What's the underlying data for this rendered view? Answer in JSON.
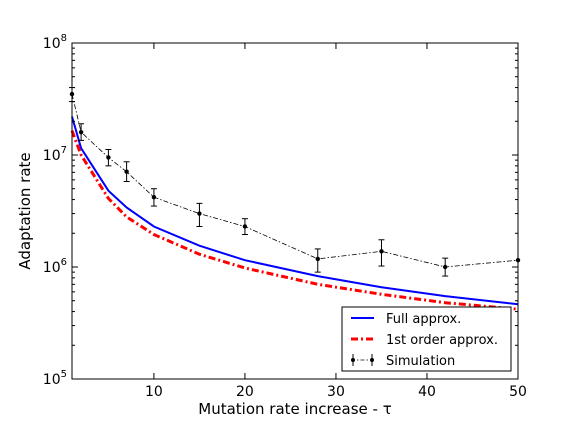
{
  "chart_data": {
    "type": "line",
    "xlabel": "Mutation rate increase - τ",
    "ylabel": "Adaptation rate",
    "xlim": [
      1,
      50
    ],
    "ylim": [
      100000,
      100000000
    ],
    "yscale": "log",
    "xticks": [
      10,
      20,
      30,
      40,
      50
    ],
    "xtick_labels": [
      "10",
      "20",
      "30",
      "40",
      "50"
    ],
    "yticks": [
      100000,
      1000000,
      10000000,
      100000000
    ],
    "ytick_labels": [
      {
        "base": "10",
        "exp": "5"
      },
      {
        "base": "10",
        "exp": "6"
      },
      {
        "base": "10",
        "exp": "7"
      },
      {
        "base": "10",
        "exp": "8"
      }
    ],
    "legend_position": "lower-right",
    "series": [
      {
        "name": "Full approx.",
        "color": "#0000ff",
        "style": "solid",
        "x": [
          1,
          2,
          5,
          7,
          10,
          15,
          20,
          28,
          35,
          42,
          50
        ],
        "y": [
          22000000,
          11500000,
          4800000,
          3400000,
          2300000,
          1550000,
          1150000,
          830000,
          660000,
          550000,
          465000
        ]
      },
      {
        "name": "1st order approx.",
        "color": "#ff0000",
        "style": "dashdot",
        "x": [
          1,
          2,
          5,
          7,
          10,
          15,
          20,
          28,
          35,
          42,
          50
        ],
        "y": [
          16500000,
          10000000,
          4100000,
          2800000,
          1950000,
          1300000,
          980000,
          700000,
          570000,
          480000,
          420000
        ]
      },
      {
        "name": "Simulation",
        "color": "#000000",
        "style": "dashdot-points",
        "x": [
          1,
          2,
          5,
          7,
          10,
          15,
          20,
          28,
          35,
          42,
          50
        ],
        "y": [
          35000000,
          16000000,
          9500000,
          7100000,
          4200000,
          3000000,
          2300000,
          1180000,
          1380000,
          1000000,
          1150000
        ],
        "err_low": [
          30000000,
          13500000,
          8000000,
          5800000,
          3500000,
          2300000,
          1950000,
          900000,
          1020000,
          830000,
          1150000
        ],
        "err_high": [
          40000000,
          19000000,
          11200000,
          8700000,
          5000000,
          3700000,
          2700000,
          1450000,
          1750000,
          1200000,
          1150000
        ]
      }
    ]
  }
}
